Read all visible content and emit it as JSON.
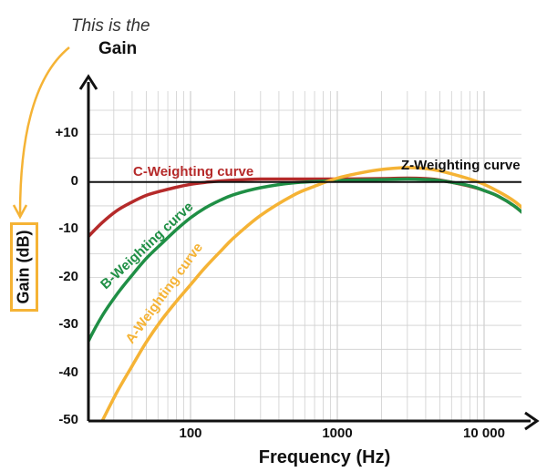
{
  "annotation": {
    "line1": "This is the",
    "line2": "Gain"
  },
  "colors": {
    "c_weighting": "#b52a2a",
    "b_weighting": "#1f8f45",
    "a_weighting": "#f5b335",
    "z_weighting": "#111111",
    "annotation": "#f5b335",
    "grid": "#cfcfcf"
  },
  "chart_data": {
    "type": "line",
    "xlabel": "Frequency (Hz)",
    "ylabel": "Gain (dB)",
    "x_scale": "log",
    "xlim": [
      18,
      25000
    ],
    "ylim": [
      -50,
      19
    ],
    "grid": true,
    "x_ticks": [
      {
        "value": 100,
        "label": "100"
      },
      {
        "value": 1000,
        "label": "1000"
      },
      {
        "value": 10000,
        "label": "10 000"
      }
    ],
    "y_ticks": [
      {
        "value": 10,
        "label": "+10"
      },
      {
        "value": 0,
        "label": "0"
      },
      {
        "value": -10,
        "label": "-10"
      },
      {
        "value": -20,
        "label": "-20"
      },
      {
        "value": -30,
        "label": "-30"
      },
      {
        "value": -40,
        "label": "-40"
      },
      {
        "value": -50,
        "label": "-50"
      }
    ],
    "series": [
      {
        "name": "C-Weighting curve",
        "color_key": "c_weighting",
        "x": [
          18,
          20,
          25,
          31.5,
          40,
          50,
          63,
          80,
          100,
          125,
          160,
          200,
          300,
          500,
          1000,
          2000,
          3000,
          4000,
          5000,
          8000,
          10000,
          12500,
          16000,
          20000,
          24000
        ],
        "y": [
          -13,
          -11.5,
          -8.5,
          -6.0,
          -4.2,
          -2.8,
          -1.9,
          -1.1,
          -0.5,
          -0.1,
          0.2,
          0.4,
          0.6,
          0.6,
          0.6,
          0.7,
          0.8,
          0.7,
          0.4,
          -0.9,
          -1.8,
          -3.0,
          -5.0,
          -7.5,
          -10.0
        ]
      },
      {
        "name": "B-Weighting curve",
        "color_key": "b_weighting",
        "x": [
          18,
          20,
          25,
          31.5,
          40,
          50,
          63,
          80,
          100,
          125,
          160,
          200,
          300,
          500,
          1000,
          2000,
          3000,
          4000,
          5000,
          8000,
          10000,
          12500,
          16000,
          20000,
          24000
        ],
        "y": [
          -37,
          -33.5,
          -28.0,
          -23.5,
          -19.5,
          -16.0,
          -13.0,
          -10.0,
          -7.5,
          -5.5,
          -3.8,
          -2.6,
          -1.2,
          -0.2,
          0.3,
          0.5,
          0.6,
          0.5,
          0.3,
          -0.8,
          -1.8,
          -3.0,
          -5.0,
          -7.5,
          -10.0
        ]
      },
      {
        "name": "A-Weighting curve",
        "color_key": "a_weighting",
        "x": [
          25,
          31.5,
          40,
          50,
          63,
          80,
          100,
          125,
          160,
          200,
          300,
          500,
          700,
          1000,
          1500,
          2000,
          3000,
          4000,
          5000,
          8000,
          10000,
          12500,
          16000,
          20000,
          24000
        ],
        "y": [
          -50,
          -44,
          -38.5,
          -33.5,
          -29.0,
          -25.0,
          -21.5,
          -18.0,
          -14.5,
          -11.5,
          -7.0,
          -2.8,
          -0.9,
          0.8,
          2.0,
          2.6,
          3.0,
          2.8,
          2.3,
          0.6,
          -0.5,
          -2.0,
          -4.0,
          -6.5,
          -9.0
        ]
      },
      {
        "name": "Z-Weighting curve",
        "color_key": "z_weighting",
        "x": [
          18,
          25000
        ],
        "y": [
          0,
          0
        ]
      }
    ]
  }
}
